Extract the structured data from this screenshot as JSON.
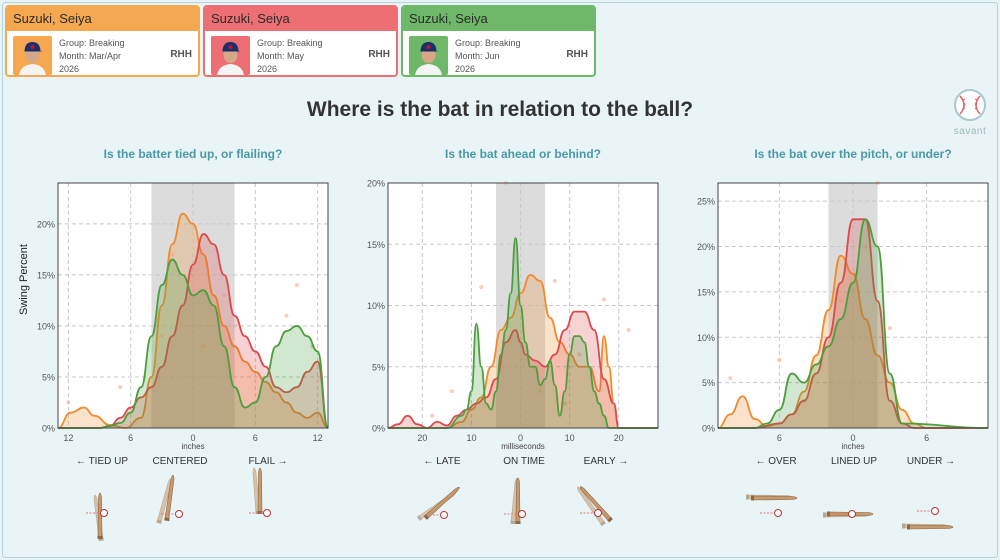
{
  "cards": [
    {
      "name": "Suzuki, Seiya",
      "group": "Group: Breaking",
      "month": "Month: Mar/Apr",
      "year": "2026",
      "hand": "RHH",
      "color": "#f5a84f"
    },
    {
      "name": "Suzuki, Seiya",
      "group": "Group: Breaking",
      "month": "Month: May",
      "year": "2026",
      "hand": "RHH",
      "color": "#ee6f73"
    },
    {
      "name": "Suzuki, Seiya",
      "group": "Group: Breaking",
      "month": "Month: Jun",
      "year": "2026",
      "hand": "RHH",
      "color": "#6fb86a"
    }
  ],
  "title": "Where is the bat in relation to the ball?",
  "savant_label": "savant",
  "ylabel": "Swing Percent",
  "series_colors": [
    "#f08a2c",
    "#dc4a4e",
    "#4d9e3f"
  ],
  "chart_data": [
    {
      "type": "area",
      "title": "Is the batter tied up, or flailing?",
      "xlabel": "inches",
      "xlim": [
        13,
        -13
      ],
      "ylim": [
        0,
        24
      ],
      "yticks": [
        0,
        5,
        10,
        15,
        20
      ],
      "yticklabels": [
        "0%",
        "5%",
        "10%",
        "15%",
        "20%"
      ],
      "xticks": [
        12,
        6,
        0,
        -6,
        -12
      ],
      "xticklabels": [
        "12",
        "6",
        "0",
        "6",
        "12"
      ],
      "band": [
        4,
        -4
      ],
      "zones": [
        "← TIED UP",
        "CENTERED",
        "FLAIL →"
      ],
      "series": [
        {
          "x": [
            13,
            11.8,
            10.5,
            9.5,
            8,
            6.5,
            5,
            4,
            3,
            2,
            1,
            0,
            -1,
            -2,
            -3,
            -4,
            -5,
            -6,
            -7,
            -8,
            -9,
            -10,
            -11,
            -12,
            -13
          ],
          "y": [
            0,
            1.5,
            2,
            1.2,
            0.3,
            0,
            1,
            5,
            12,
            18,
            21,
            20,
            17,
            13,
            10,
            8,
            6.5,
            5.5,
            4.5,
            3.5,
            2.5,
            1.5,
            1,
            1.5,
            0
          ]
        },
        {
          "x": [
            13,
            11,
            9,
            8,
            7,
            6,
            5,
            4,
            3,
            2,
            1,
            0,
            -1,
            -2,
            -3,
            -4,
            -5,
            -6,
            -7,
            -8,
            -9,
            -10,
            -11,
            -12,
            -13
          ],
          "y": [
            0,
            0,
            0,
            0.2,
            1,
            2,
            3,
            4,
            6,
            9,
            12,
            16,
            19,
            18,
            15,
            11,
            9,
            7.5,
            6,
            4,
            3.5,
            4,
            5.5,
            6.5,
            0
          ]
        },
        {
          "x": [
            13,
            11,
            9,
            8,
            7,
            6,
            5,
            4,
            3,
            2,
            1,
            0,
            -1,
            -2,
            -3,
            -4,
            -5,
            -6,
            -7,
            -8,
            -9,
            -10,
            -11,
            -12,
            -13
          ],
          "y": [
            0,
            0,
            0,
            0.2,
            0.5,
            1.5,
            4,
            9,
            14,
            16.5,
            15,
            13,
            13.5,
            12,
            8,
            4,
            2,
            2.5,
            5,
            8,
            9.5,
            10,
            9,
            7.5,
            0
          ]
        }
      ],
      "points": [
        [
          12,
          2.5
        ],
        [
          3,
          9
        ],
        [
          2,
          17
        ],
        [
          1,
          12
        ],
        [
          -1,
          8
        ],
        [
          -3,
          13
        ],
        [
          -9,
          11
        ],
        [
          -10,
          14
        ],
        [
          -11.5,
          8
        ],
        [
          7,
          4
        ]
      ]
    },
    {
      "type": "area",
      "title": "Is the bat ahead or behind?",
      "xlabel": "milliseconds",
      "xlim": [
        -27,
        28
      ],
      "ylim": [
        0,
        20
      ],
      "yticks": [
        0,
        5,
        10,
        15,
        20
      ],
      "yticklabels": [
        "0%",
        "5%",
        "10%",
        "15%",
        "20%"
      ],
      "xticks": [
        -20,
        -10,
        0,
        10,
        20
      ],
      "xticklabels": [
        "20",
        "10",
        "0",
        "10",
        "20"
      ],
      "band": [
        -5,
        5
      ],
      "zones": [
        "← LATE",
        "ON TIME",
        "EARLY →"
      ],
      "series": [
        {
          "x": [
            -27,
            -22,
            -15,
            -12,
            -10,
            -8,
            -6,
            -4,
            -2,
            0,
            2,
            4,
            6,
            8,
            10,
            12,
            14,
            16,
            17,
            18,
            19,
            20,
            28
          ],
          "y": [
            0,
            0,
            0,
            0.5,
            1.5,
            2.5,
            5,
            8,
            9,
            11,
            12.5,
            12,
            9,
            7,
            6,
            5,
            5,
            3,
            7.5,
            5,
            2,
            0,
            0
          ]
        },
        {
          "x": [
            -27,
            -25,
            -23,
            -21,
            -19,
            -17,
            -15,
            -13,
            -11,
            -9,
            -7,
            -5,
            -3,
            -1,
            0,
            1,
            3,
            5,
            7,
            9,
            11,
            13,
            15,
            17,
            19,
            20,
            28
          ],
          "y": [
            0,
            0.3,
            1,
            0.3,
            0,
            0.5,
            0.2,
            1,
            1.5,
            2,
            2.5,
            4,
            7,
            8,
            7,
            6,
            5.5,
            5,
            6,
            8,
            9.5,
            9.5,
            8,
            4,
            2,
            0,
            0
          ]
        },
        {
          "x": [
            -27,
            -15,
            -12,
            -11,
            -10,
            -9,
            -8,
            -7,
            -6,
            -5,
            -4,
            -3,
            -2,
            -1,
            0,
            1,
            2,
            3,
            4,
            5,
            6,
            7,
            8,
            9,
            10,
            11,
            12,
            13,
            14,
            15,
            16,
            17,
            18,
            28
          ],
          "y": [
            0,
            0,
            1,
            1.5,
            3,
            8.5,
            5,
            2,
            1.5,
            3,
            6,
            8,
            11,
            15.5,
            10,
            7,
            5,
            5,
            3.5,
            4,
            5.5,
            3.5,
            1,
            3,
            6,
            7.5,
            7.5,
            7,
            5,
            3,
            2,
            1,
            0,
            0
          ]
        }
      ],
      "points": [
        [
          -3,
          20
        ],
        [
          -8,
          11.5
        ],
        [
          7,
          12
        ],
        [
          17,
          10.5
        ],
        [
          22,
          8
        ],
        [
          4,
          3
        ],
        [
          -14,
          3
        ],
        [
          12,
          6
        ],
        [
          -18,
          1
        ],
        [
          9,
          2
        ]
      ]
    },
    {
      "type": "area",
      "title": "Is the bat over the pitch, or under?",
      "xlabel": "inches",
      "xlim": [
        -11,
        11
      ],
      "ylim": [
        0,
        27
      ],
      "yticks": [
        0,
        5,
        10,
        15,
        20,
        25
      ],
      "yticklabels": [
        "0%",
        "5%",
        "10%",
        "15%",
        "20%",
        "25%"
      ],
      "xticks": [
        -6,
        0,
        6
      ],
      "xticklabels": [
        "6",
        "0",
        "6"
      ],
      "band": [
        -2,
        2
      ],
      "zones": [
        "← OVER",
        "LINED UP",
        "UNDER →"
      ],
      "series": [
        {
          "x": [
            -11,
            -10,
            -9,
            -8,
            -7,
            -6,
            -5,
            -4,
            -3,
            -2,
            -1,
            0,
            1,
            2,
            3,
            4,
            5,
            6,
            7,
            11
          ],
          "y": [
            0,
            1.5,
            3.5,
            1,
            0.2,
            0.5,
            1.5,
            4,
            8,
            13,
            19,
            17,
            12,
            8,
            5,
            2,
            0.5,
            0,
            0,
            0
          ]
        },
        {
          "x": [
            -11,
            -8,
            -6,
            -5,
            -4,
            -3,
            -2,
            -1,
            0,
            1,
            2,
            3,
            4,
            5,
            11
          ],
          "y": [
            0,
            0,
            0.5,
            1.5,
            3,
            6,
            10,
            16,
            23,
            23,
            14,
            3,
            0.5,
            0,
            0
          ]
        },
        {
          "x": [
            -11,
            -8,
            -7,
            -6,
            -5,
            -4,
            -3,
            -2,
            -1,
            0,
            1,
            2,
            3,
            4,
            11
          ],
          "y": [
            0,
            0,
            0.5,
            2,
            6,
            5,
            7,
            9,
            12,
            16,
            23,
            20,
            6,
            0.5,
            0
          ]
        }
      ],
      "points": [
        [
          -10,
          5.5
        ],
        [
          -6,
          7.5
        ],
        [
          2,
          27
        ],
        [
          1,
          20
        ],
        [
          -1,
          14
        ],
        [
          3,
          11
        ],
        [
          -4,
          3
        ]
      ]
    }
  ]
}
